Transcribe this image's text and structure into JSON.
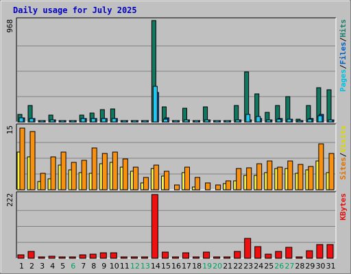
{
  "chart_data": {
    "type": "bar",
    "title": "Daily usage for July 2025",
    "days": [
      "1",
      "2",
      "3",
      "4",
      "5",
      "6",
      "7",
      "8",
      "9",
      "10",
      "11",
      "12",
      "13",
      "14",
      "15",
      "16",
      "17",
      "18",
      "19",
      "20",
      "21",
      "22",
      "23",
      "24",
      "25",
      "26",
      "27",
      "28",
      "29",
      "30",
      "31"
    ],
    "weekend_days": [
      "6",
      "12",
      "13",
      "19",
      "20",
      "26",
      "27"
    ],
    "panels": [
      {
        "id": "hits-files-pages",
        "ymax": 968,
        "ymax_label": "968",
        "labels": [
          {
            "text": "Pages",
            "color": "#00c0e0"
          },
          {
            "text": "/",
            "color": "#000000"
          },
          {
            "text": "Files",
            "color": "#0060c0"
          },
          {
            "text": "/",
            "color": "#000000"
          },
          {
            "text": "Hits",
            "color": "#1a7f6a"
          }
        ],
        "series": [
          {
            "name": "Hits",
            "color": "#107860",
            "values": [
              70,
              160,
              10,
              65,
              15,
              15,
              65,
              85,
              120,
              125,
              15,
              10,
              10,
              968,
              145,
              5,
              130,
              5,
              145,
              5,
              5,
              155,
              480,
              265,
              90,
              160,
              245,
              25,
              160,
              330,
              310
            ]
          },
          {
            "name": "Files",
            "color": "#0060c0",
            "values": [
              40,
              30,
              5,
              20,
              8,
              8,
              30,
              35,
              30,
              30,
              8,
              5,
              5,
              280,
              40,
              3,
              20,
              3,
              20,
              3,
              3,
              20,
              20,
              30,
              20,
              30,
              25,
              10,
              30,
              70,
              20
            ]
          },
          {
            "name": "Pages",
            "color": "#20c8f0",
            "values": [
              40,
              30,
              5,
              20,
              8,
              8,
              30,
              35,
              30,
              30,
              8,
              5,
              5,
              340,
              25,
              3,
              20,
              3,
              20,
              3,
              3,
              20,
              70,
              50,
              20,
              25,
              25,
              10,
              25,
              60,
              20
            ]
          }
        ]
      },
      {
        "id": "visits-sites",
        "ymax": 15,
        "ymax_label": "15",
        "labels": [
          {
            "text": "Sites",
            "color": "#e07000"
          },
          {
            "text": "/",
            "color": "#000000"
          },
          {
            "text": "Visits",
            "color": "#d8d800"
          }
        ],
        "series": [
          {
            "name": "Visits",
            "color": "#f8f040",
            "values": [
              9,
              7.8,
              2,
              2.6,
              5.8,
              4.8,
              4,
              3.9,
              6.2,
              6.6,
              5.3,
              4.4,
              1.6,
              5,
              3.2,
              0,
              4,
              0.6,
              0,
              0,
              1.4,
              2.1,
              3.5,
              3.5,
              4,
              5,
              5,
              3.9,
              4.8,
              6.8,
              4
            ]
          },
          {
            "name": "Sites",
            "color": "#f89010",
            "values": [
              14.6,
              13.8,
              3.9,
              7.8,
              8.9,
              6.6,
              7,
              9.9,
              8.7,
              8.9,
              7.3,
              5.3,
              2.9,
              5.9,
              4.4,
              1.2,
              5.3,
              3,
              1.7,
              1.2,
              2.1,
              5,
              5.2,
              6.2,
              6.9,
              5.3,
              6.8,
              6,
              5.6,
              10.9,
              8.6
            ]
          }
        ]
      },
      {
        "id": "kbytes",
        "ymax": 222,
        "ymax_label": "222",
        "labels": [
          {
            "text": "KBytes",
            "color": "#e01010"
          }
        ],
        "series": [
          {
            "name": "KBytes",
            "color": "#ee1010",
            "values": [
              12,
              25,
              2,
              8,
              4,
              2,
              12,
              14,
              18,
              20,
              4,
              2,
              2,
              222,
              22,
              2,
              20,
              2,
              22,
              2,
              2,
              24,
              70,
              40,
              15,
              25,
              38,
              5,
              27,
              48,
              48
            ]
          }
        ]
      }
    ]
  }
}
